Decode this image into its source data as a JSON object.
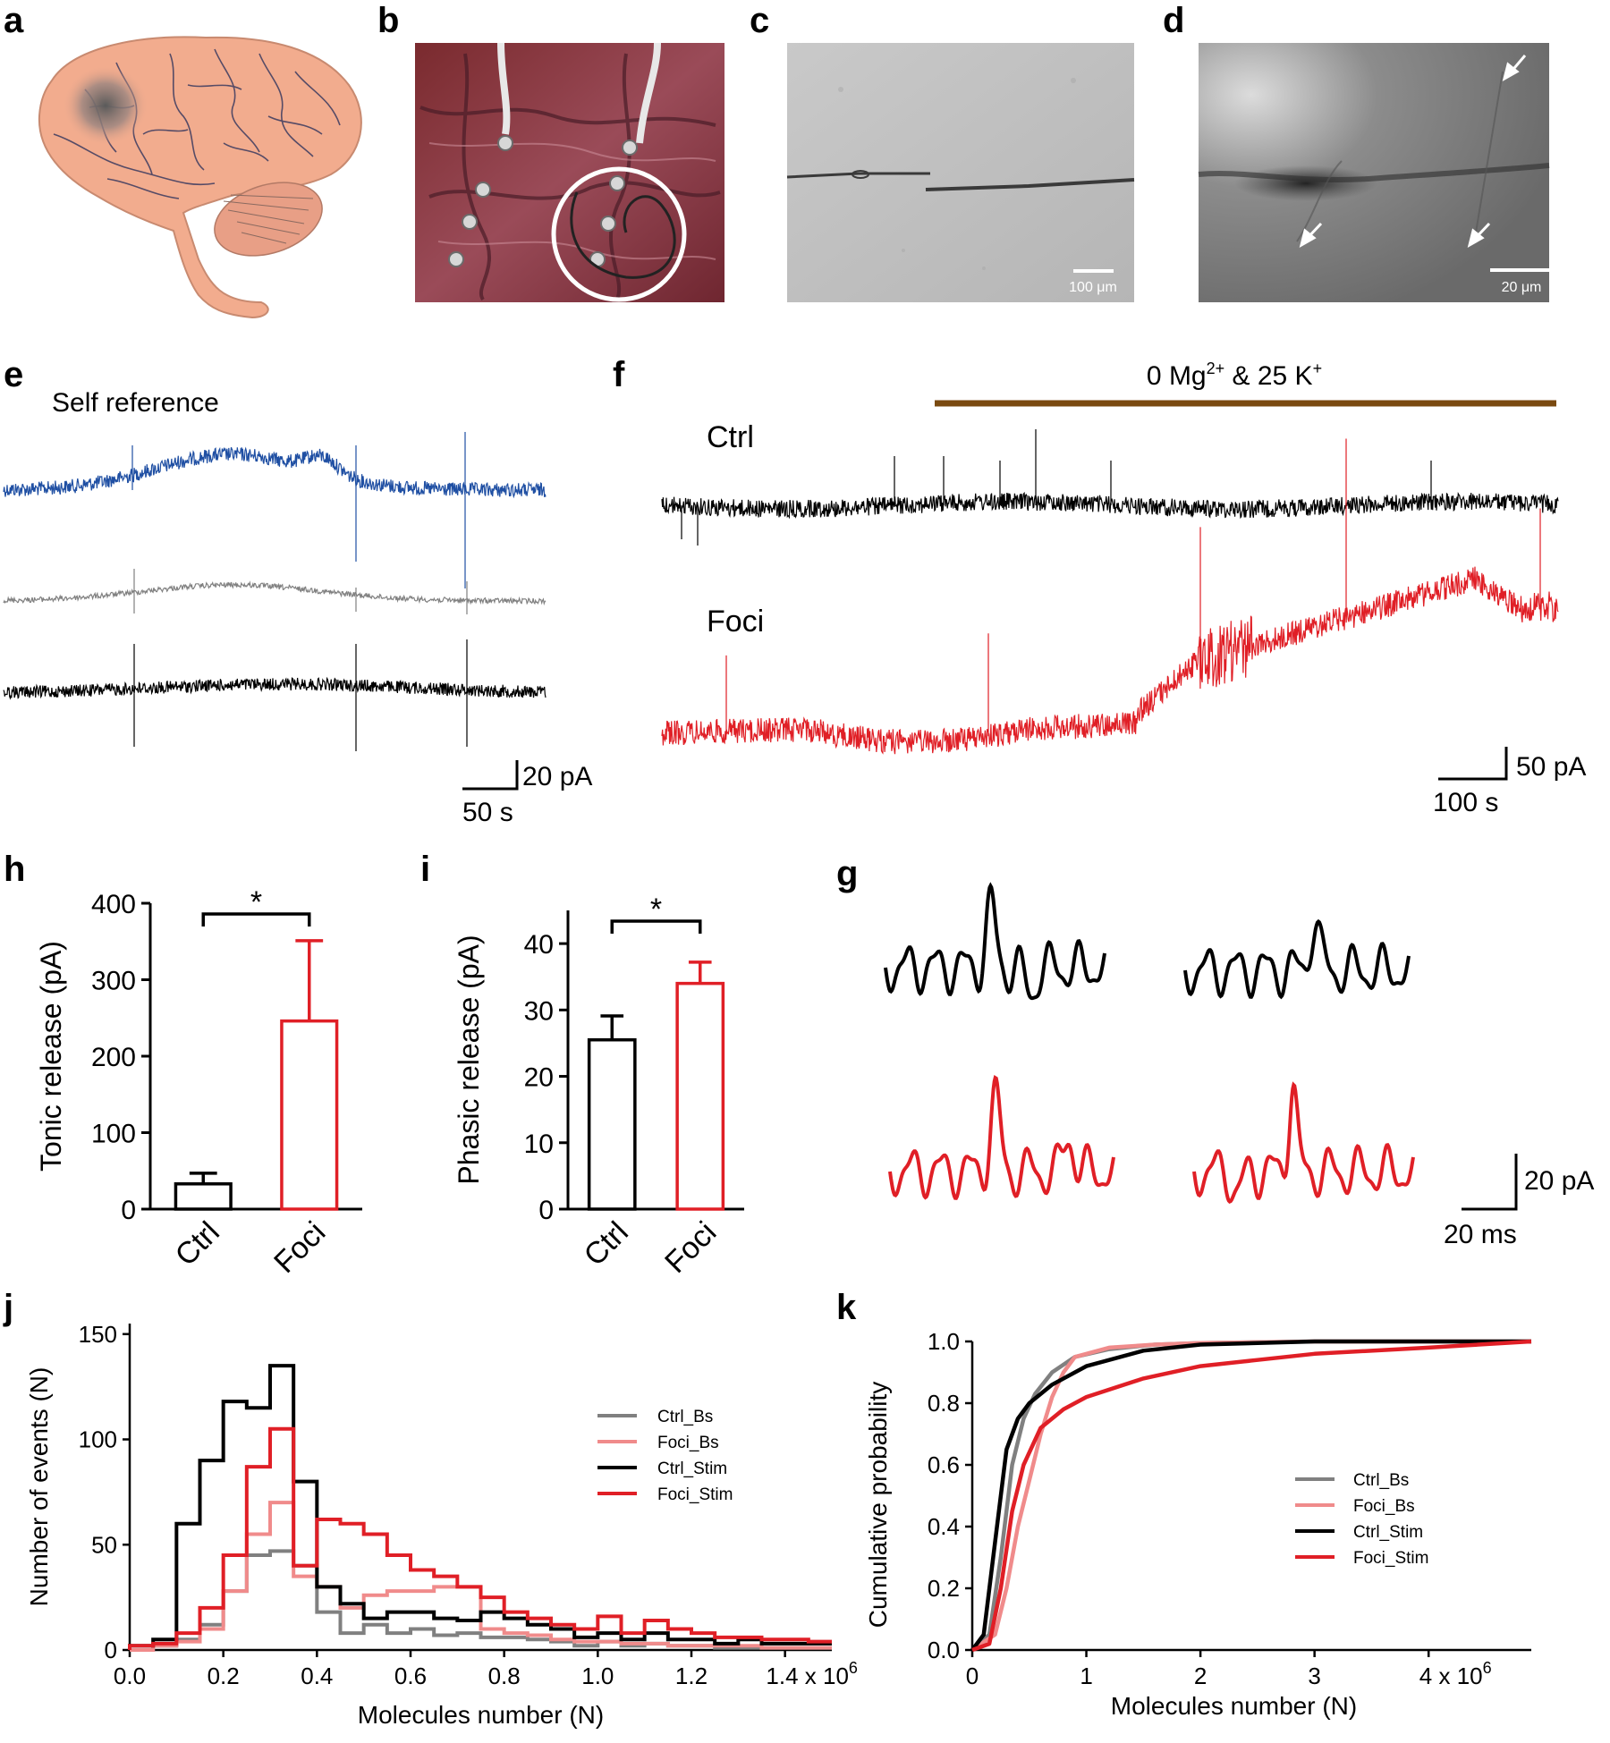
{
  "panels": {
    "a": "a",
    "b": "b",
    "c": "c",
    "d": "d",
    "e": "e",
    "f": "f",
    "g": "g",
    "h": "h",
    "i": "i",
    "j": "j",
    "k": "k"
  },
  "scalebars": {
    "c": "100 μm",
    "d": "20 μm",
    "e_y": "20 pA",
    "e_x": "50 s",
    "f_y": "50 pA",
    "f_x": "100 s",
    "g_y": "20 pA",
    "g_x": "20 ms"
  },
  "panel_e": {
    "label": "Self reference"
  },
  "panel_f": {
    "treatment_base": "0 Mg",
    "treatment_sup1": "2+",
    "treatment_mid": " & 25 K",
    "treatment_sup2": "+",
    "ctrl_label": "Ctrl",
    "foci_label": "Foci"
  },
  "colors": {
    "blue_trace": "#1f4fa3",
    "gray_trace": "#808080",
    "black_trace": "#000000",
    "red_trace": "#e01f26",
    "pink_trace": "#f08b8b",
    "treatment_bar": "#7a4a10",
    "brain": "#f2ac8e"
  },
  "chart_data": [
    {
      "panel": "h",
      "type": "bar",
      "categories": [
        "Ctrl",
        "Foci"
      ],
      "values": [
        33,
        246
      ],
      "errors": [
        14,
        105
      ],
      "ylabel": "Tonic release (pA)",
      "ylim": [
        0,
        400
      ],
      "yticks": [
        "0",
        "100",
        "200",
        "300",
        "400"
      ],
      "significance": "*",
      "colors": [
        "#000000",
        "#e01f26"
      ]
    },
    {
      "panel": "i",
      "type": "bar",
      "categories": [
        "Ctrl",
        "Foci"
      ],
      "values": [
        25.5,
        34
      ],
      "errors": [
        3.6,
        3.2
      ],
      "ylabel": "Phasic release (pA)",
      "ylim": [
        0,
        45
      ],
      "yticks": [
        "0",
        "10",
        "20",
        "30",
        "40"
      ],
      "significance": "*",
      "colors": [
        "#000000",
        "#e01f26"
      ]
    },
    {
      "panel": "j",
      "type": "line",
      "xlabel": "Molecules number (N)",
      "ylabel": "Number of events (N)",
      "xlim": [
        0,
        1.5
      ],
      "ylim": [
        0,
        155
      ],
      "xticks": [
        "0.0",
        "0.2",
        "0.4",
        "0.6",
        "0.8",
        "1.0",
        "1.2",
        "1.4 x 10"
      ],
      "xtick_exponent": "6",
      "yticks": [
        "0",
        "50",
        "100",
        "150"
      ],
      "bin_width": 0.05,
      "bin_starts": [
        0.0,
        0.05,
        0.1,
        0.15,
        0.2,
        0.25,
        0.3,
        0.35,
        0.4,
        0.45,
        0.5,
        0.55,
        0.6,
        0.65,
        0.7,
        0.75,
        0.8,
        0.85,
        0.9,
        0.95,
        1.0,
        1.05,
        1.1,
        1.15,
        1.2,
        1.25,
        1.3,
        1.35,
        1.4,
        1.45
      ],
      "series": [
        {
          "name": "Ctrl_Bs",
          "color": "#808080",
          "values": [
            0,
            2,
            5,
            12,
            28,
            45,
            47,
            40,
            18,
            8,
            12,
            8,
            10,
            7,
            8,
            6,
            6,
            5,
            4,
            2,
            4,
            2,
            3,
            2,
            2,
            1,
            1,
            1,
            1,
            1
          ]
        },
        {
          "name": "Foci_Bs",
          "color": "#f08b8b",
          "values": [
            0,
            2,
            4,
            10,
            28,
            55,
            70,
            35,
            30,
            20,
            26,
            28,
            28,
            30,
            30,
            10,
            8,
            7,
            5,
            4,
            4,
            3,
            3,
            2,
            2,
            2,
            2,
            1,
            1,
            1
          ]
        },
        {
          "name": "Ctrl_Stim",
          "color": "#000000",
          "values": [
            2,
            5,
            60,
            90,
            118,
            115,
            135,
            80,
            30,
            22,
            15,
            18,
            18,
            15,
            14,
            18,
            15,
            12,
            10,
            6,
            8,
            5,
            8,
            5,
            5,
            3,
            5,
            3,
            3,
            3
          ]
        },
        {
          "name": "Foci_Stim",
          "color": "#e01f26",
          "values": [
            2,
            3,
            8,
            20,
            45,
            87,
            105,
            40,
            62,
            60,
            55,
            45,
            38,
            35,
            30,
            25,
            18,
            15,
            12,
            10,
            16,
            8,
            14,
            10,
            8,
            6,
            6,
            5,
            5,
            4
          ]
        }
      ],
      "legend": [
        "Ctrl_Bs",
        "Foci_Bs",
        "Ctrl_Stim",
        "Foci_Stim"
      ],
      "legend_placement": "right"
    },
    {
      "panel": "k",
      "type": "line",
      "xlabel": "Molecules number (N)",
      "ylabel": "Cumulative probability",
      "xlim": [
        0,
        4.9
      ],
      "ylim": [
        0,
        1.0
      ],
      "xticks": [
        "0",
        "1",
        "2",
        "3",
        "4 x 10"
      ],
      "xtick_exponent": "6",
      "yticks": [
        "0.0",
        "0.2",
        "0.4",
        "0.6",
        "0.8",
        "1.0"
      ],
      "series": [
        {
          "name": "Ctrl_Bs",
          "color": "#808080",
          "x": [
            0,
            0.15,
            0.25,
            0.35,
            0.45,
            0.55,
            0.7,
            0.9,
            1.2,
            1.6,
            2.0,
            3.0,
            4.9
          ],
          "y": [
            0,
            0.05,
            0.3,
            0.6,
            0.75,
            0.83,
            0.9,
            0.95,
            0.975,
            0.99,
            0.995,
            1.0,
            1.0
          ]
        },
        {
          "name": "Foci_Bs",
          "color": "#f08b8b",
          "x": [
            0,
            0.2,
            0.3,
            0.4,
            0.5,
            0.6,
            0.7,
            0.8,
            0.9,
            1.2,
            1.6,
            2.0,
            3.0,
            4.9
          ],
          "y": [
            0,
            0.05,
            0.2,
            0.4,
            0.55,
            0.7,
            0.82,
            0.9,
            0.95,
            0.98,
            0.99,
            0.995,
            1.0,
            1.0
          ]
        },
        {
          "name": "Ctrl_Stim",
          "color": "#000000",
          "x": [
            0,
            0.1,
            0.2,
            0.3,
            0.4,
            0.5,
            0.7,
            1.0,
            1.5,
            2.0,
            3.0,
            4.9
          ],
          "y": [
            0,
            0.05,
            0.35,
            0.65,
            0.75,
            0.8,
            0.86,
            0.92,
            0.97,
            0.99,
            1.0,
            1.0
          ]
        },
        {
          "name": "Foci_Stim",
          "color": "#e01f26",
          "x": [
            0,
            0.15,
            0.25,
            0.35,
            0.45,
            0.6,
            0.8,
            1.0,
            1.5,
            2.0,
            2.5,
            3.0,
            4.0,
            4.9
          ],
          "y": [
            0,
            0.02,
            0.2,
            0.45,
            0.6,
            0.72,
            0.78,
            0.82,
            0.88,
            0.92,
            0.94,
            0.96,
            0.98,
            1.0
          ]
        }
      ],
      "legend": [
        "Ctrl_Bs",
        "Foci_Bs",
        "Ctrl_Stim",
        "Foci_Stim"
      ],
      "legend_placement": "center-right"
    }
  ]
}
